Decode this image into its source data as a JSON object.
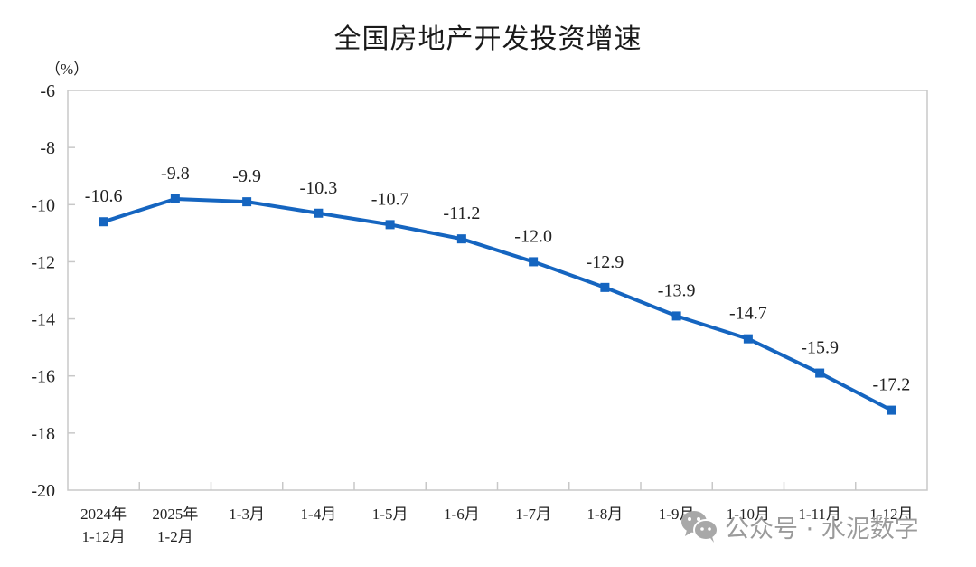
{
  "chart_data": {
    "type": "line",
    "title": "全国房地产开发投资增速",
    "ylabel": "（%）",
    "xlabel": "",
    "ylim": [
      -20,
      -6
    ],
    "yticks": [
      -6,
      -8,
      -10,
      -12,
      -14,
      -16,
      -18,
      -20
    ],
    "grid": false,
    "legend": null,
    "categories": [
      [
        "2024年",
        "1-12月"
      ],
      [
        "2025年",
        "1-2月"
      ],
      [
        "1-3月"
      ],
      [
        "1-4月"
      ],
      [
        "1-5月"
      ],
      [
        "1-6月"
      ],
      [
        "1-7月"
      ],
      [
        "1-8月"
      ],
      [
        "1-9月"
      ],
      [
        "1-10月"
      ],
      [
        "1-11月"
      ],
      [
        "1-12月"
      ]
    ],
    "series": [
      {
        "name": "全国房地产开发投资增速",
        "color": "#1565C0",
        "marker": "square",
        "values": [
          -10.6,
          -9.8,
          -9.9,
          -10.3,
          -10.7,
          -11.2,
          -12.0,
          -12.9,
          -13.9,
          -14.7,
          -15.9,
          -17.2
        ],
        "labels": [
          "-10.6",
          "-9.8",
          "-9.9",
          "-10.3",
          "-10.7",
          "-11.2",
          "-12.0",
          "-12.9",
          "-13.9",
          "-14.7",
          "-15.9",
          "-17.2"
        ]
      }
    ]
  },
  "watermark": {
    "icon": "wechat-icon",
    "text": "公众号 · 水泥数字"
  },
  "colors": {
    "line": "#1565C0",
    "axis": "#c8c8c8",
    "text": "#222222",
    "watermark": "#9a9a9a"
  }
}
